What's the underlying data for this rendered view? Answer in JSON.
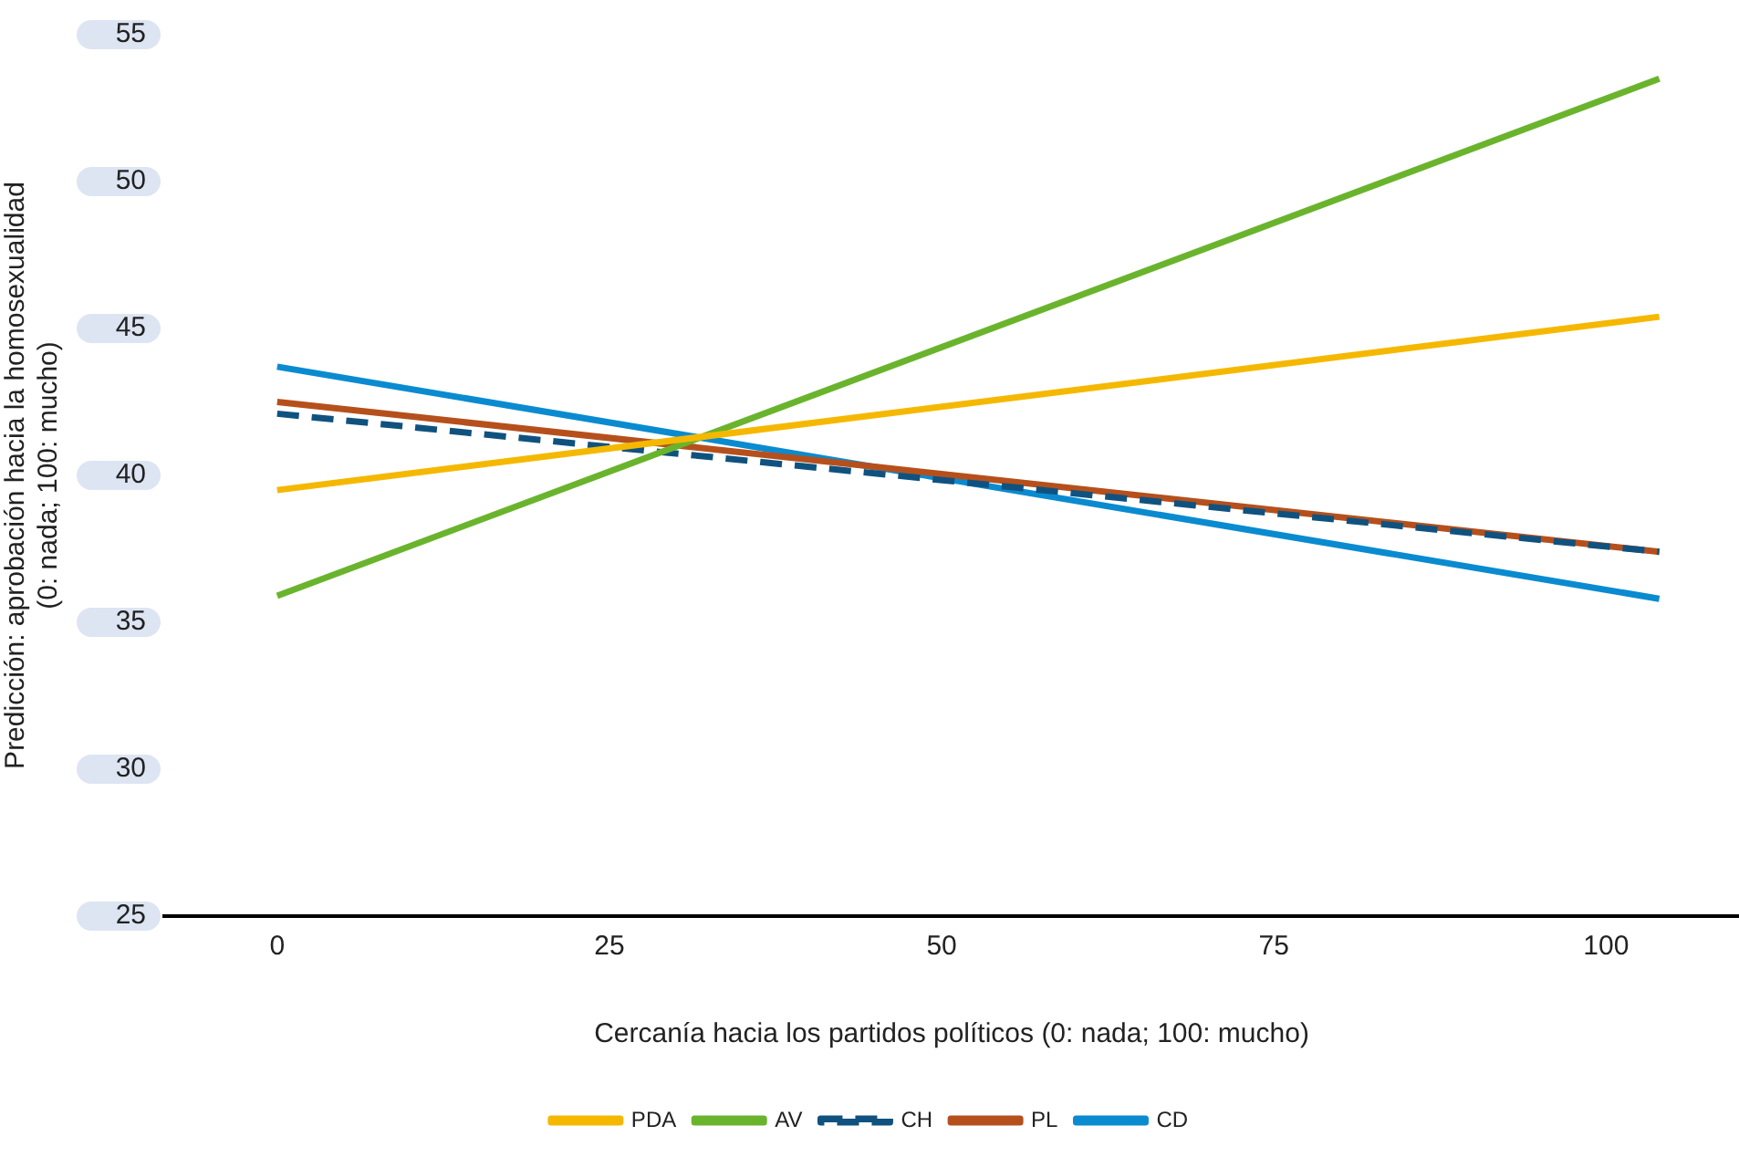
{
  "chart_data": {
    "type": "line",
    "xlabel": "Cercanía hacia los partidos políticos (0: nada; 100: mucho)",
    "ylabel": "Predicción: aprobación hacia la homosexualidad\n(0: nada; 100: mucho)",
    "x": [
      0,
      104
    ],
    "xlim": [
      -8.5,
      110
    ],
    "xticks": [
      0,
      25,
      50,
      75,
      100
    ],
    "ylim": [
      25,
      55
    ],
    "yticks": [
      25,
      30,
      35,
      40,
      45,
      50,
      55
    ],
    "grid": false,
    "legend": "bottom",
    "marker": "none",
    "series": [
      {
        "name": "PDA",
        "color": "#f5b800",
        "values": [
          39.5,
          45.4
        ]
      },
      {
        "name": "AV",
        "color": "#6ab42d",
        "values": [
          35.9,
          53.5
        ]
      },
      {
        "name": "CH",
        "color": "#10527f",
        "values": [
          42.1,
          37.4
        ],
        "line_style": "dashed"
      },
      {
        "name": "PL",
        "color": "#b5501c",
        "values": [
          42.5,
          37.4
        ]
      },
      {
        "name": "CD",
        "color": "#0a8bd0",
        "values": [
          43.7,
          35.8
        ]
      }
    ]
  }
}
